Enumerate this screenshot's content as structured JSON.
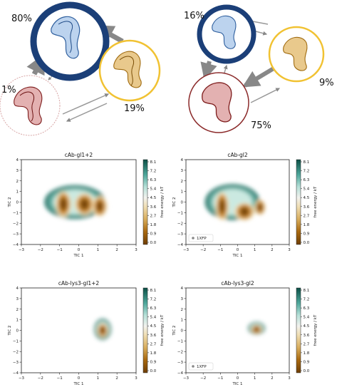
{
  "network": [
    {
      "states": [
        {
          "id": "blue",
          "percent": "80%",
          "ring": "#1b3f78",
          "fill": "#ffffff"
        },
        {
          "id": "yellow",
          "percent": "19%",
          "ring": "#f1c232",
          "fill": "#ffffff"
        },
        {
          "id": "red",
          "percent": "1%",
          "ring": "#c98a8a",
          "fill": "#ffffff"
        }
      ]
    },
    {
      "states": [
        {
          "id": "blue",
          "percent": "16%",
          "ring": "#1b3f78",
          "fill": "#ffffff"
        },
        {
          "id": "yellow",
          "percent": "9%",
          "ring": "#f1c232",
          "fill": "#ffffff"
        },
        {
          "id": "red",
          "percent": "75%",
          "ring": "#8b2a2a",
          "fill": "#ffffff"
        }
      ]
    }
  ],
  "chart_data": [
    {
      "type": "heatmap",
      "title": "cAb-gl1+2",
      "xlabel": "TIC 1",
      "ylabel": "TIC 2",
      "xlim": [
        -3,
        3
      ],
      "ylim": [
        -4,
        4
      ],
      "xticks": [
        "−3",
        "−2",
        "−1",
        "0",
        "1",
        "2",
        "3"
      ],
      "yticks": [
        "4",
        "3",
        "2",
        "1",
        "0",
        "−1",
        "−2",
        "−3",
        "−4"
      ],
      "colorbar_label": "free energy / kT",
      "colorbar_ticks": [
        "8.1",
        "7.2",
        "6.3",
        "5.4",
        "4.5",
        "3.6",
        "2.7",
        "1.8",
        "0.9",
        "0.0"
      ],
      "legend": "",
      "minima": [
        {
          "x": -0.8,
          "y": -0.2,
          "sx": 0.32,
          "sy": 1.0
        },
        {
          "x": 0.3,
          "y": -0.2,
          "sx": 0.4,
          "sy": 0.85
        },
        {
          "x": 1.1,
          "y": -0.4,
          "sx": 0.3,
          "sy": 0.8
        }
      ],
      "spread": [
        {
          "x": -0.2,
          "y": 0.0,
          "sx": 1.6,
          "sy": 1.6
        }
      ]
    },
    {
      "type": "heatmap",
      "title": "cAb-gl2",
      "xlabel": "TIC 1",
      "ylabel": "TIC 2",
      "xlim": [
        -3,
        3
      ],
      "ylim": [
        -4,
        4
      ],
      "xticks": [
        "−3",
        "−2",
        "−1",
        "0",
        "1",
        "2",
        "3"
      ],
      "yticks": [
        "4",
        "3",
        "2",
        "1",
        "0",
        "−1",
        "−2",
        "−3",
        "−4"
      ],
      "colorbar_label": "free energy / kT",
      "colorbar_ticks": [
        "8.1",
        "7.2",
        "6.3",
        "5.4",
        "4.5",
        "3.6",
        "2.7",
        "1.8",
        "0.9",
        "0.0"
      ],
      "legend": "1XFP",
      "minima": [
        {
          "x": -0.9,
          "y": -0.4,
          "sx": 0.3,
          "sy": 1.1
        },
        {
          "x": 0.4,
          "y": -0.9,
          "sx": 0.45,
          "sy": 0.7
        },
        {
          "x": 1.3,
          "y": -0.5,
          "sx": 0.25,
          "sy": 0.6
        }
      ],
      "spread": [
        {
          "x": -0.3,
          "y": 0.0,
          "sx": 1.6,
          "sy": 1.7
        }
      ]
    },
    {
      "type": "heatmap",
      "title": "cAb-lys3-gl1+2",
      "xlabel": "TIC 1",
      "ylabel": "TIC 2",
      "xlim": [
        -3,
        3
      ],
      "ylim": [
        -4,
        4
      ],
      "xticks": [
        "−3",
        "−2",
        "−1",
        "0",
        "1",
        "2",
        "3"
      ],
      "yticks": [
        "4",
        "3",
        "2",
        "1",
        "0",
        "−1",
        "−2",
        "−3",
        "−4"
      ],
      "colorbar_label": "free energy / kT",
      "colorbar_ticks": [
        "8.1",
        "7.2",
        "6.3",
        "5.4",
        "4.5",
        "3.6",
        "2.7",
        "1.8",
        "0.9",
        "0.0"
      ],
      "legend": "",
      "minima": [
        {
          "x": 1.25,
          "y": 0.0,
          "sx": 0.22,
          "sy": 0.55
        }
      ],
      "spread": [
        {
          "x": 1.25,
          "y": 0.1,
          "sx": 0.45,
          "sy": 1.0
        }
      ]
    },
    {
      "type": "heatmap",
      "title": "cAb-lys3-gl2",
      "xlabel": "TIC 1",
      "ylabel": "TIC 2",
      "xlim": [
        -3,
        3
      ],
      "ylim": [
        -4,
        4
      ],
      "xticks": [
        "−3",
        "−2",
        "−1",
        "0",
        "1",
        "2",
        "3"
      ],
      "yticks": [
        "4",
        "3",
        "2",
        "1",
        "0",
        "−1",
        "−2",
        "−3",
        "−4"
      ],
      "colorbar_label": "free energy / kT",
      "colorbar_ticks": [
        "8.1",
        "7.2",
        "6.3",
        "5.4",
        "4.5",
        "3.6",
        "2.7",
        "1.8",
        "0.9",
        "0.0"
      ],
      "legend": "1XFP",
      "minima": [
        {
          "x": 1.1,
          "y": 0.1,
          "sx": 0.25,
          "sy": 0.35
        }
      ],
      "spread": [
        {
          "x": 1.1,
          "y": 0.2,
          "sx": 0.5,
          "sy": 0.6
        }
      ]
    }
  ]
}
